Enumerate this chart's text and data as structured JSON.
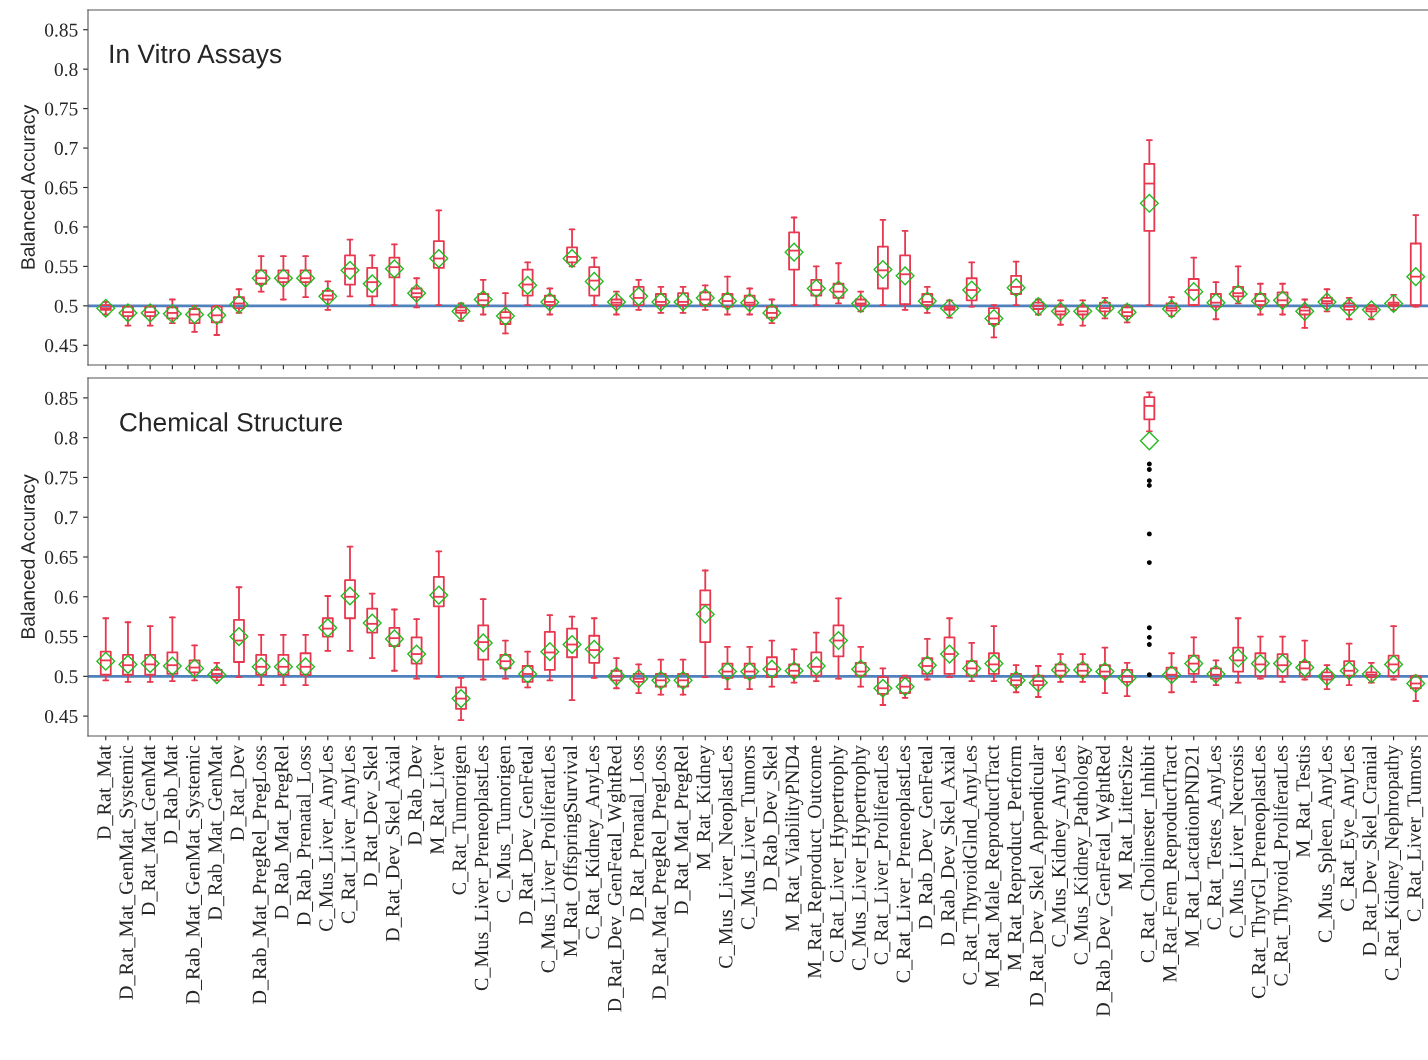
{
  "chart_data": [
    {
      "type": "box",
      "title": "In Vitro Assays",
      "ylabel": "Balanced Accuracy",
      "tick_labels": "y",
      "categories": [
        null,
        null,
        null,
        null,
        null,
        null,
        null,
        null,
        null,
        null,
        null,
        null,
        null,
        null,
        null,
        null,
        null,
        null,
        null,
        null,
        null,
        null,
        null,
        null,
        null,
        null,
        null,
        null,
        null,
        null,
        null,
        null,
        null,
        null,
        null,
        null,
        null,
        null,
        null,
        null,
        null,
        null,
        null,
        null,
        null,
        null,
        null,
        null,
        null,
        null,
        null,
        null,
        null,
        null,
        null,
        null,
        null,
        null,
        null,
        null
      ],
      "ylim": [
        0.425,
        0.875
      ],
      "yticks": [
        {
          "value": 0.45,
          "label": "0.45"
        },
        {
          "value": 0.5,
          "label": "0.5"
        },
        {
          "value": 0.55,
          "label": "0.55"
        },
        {
          "value": 0.6,
          "label": "0.6"
        },
        {
          "value": 0.65,
          "label": "0.65"
        },
        {
          "value": 0.7,
          "label": "0.7"
        },
        {
          "value": 0.75,
          "label": "0.75"
        },
        {
          "value": 0.8,
          "label": "0.8"
        },
        {
          "value": 0.85,
          "label": "0.85"
        }
      ],
      "ref_lines": [
        {
          "axis": "y",
          "value": 0.5,
          "color": "#4f81bd"
        }
      ],
      "grid": false,
      "legend": false,
      "series": [
        {
          "color": "#e8384f",
          "boxes": [
            {
              "low": 0.489,
              "q1": 0.495,
              "median": 0.497,
              "q3": 0.501,
              "high": 0.505,
              "mean": 0.497
            },
            {
              "low": 0.475,
              "q1": 0.487,
              "median": 0.492,
              "q3": 0.499,
              "high": 0.5,
              "mean": 0.491
            },
            {
              "low": 0.475,
              "q1": 0.487,
              "median": 0.492,
              "q3": 0.499,
              "high": 0.5,
              "mean": 0.491
            },
            {
              "low": 0.478,
              "q1": 0.484,
              "median": 0.491,
              "q3": 0.498,
              "high": 0.508,
              "mean": 0.49
            },
            {
              "low": 0.467,
              "q1": 0.478,
              "median": 0.489,
              "q3": 0.496,
              "high": 0.5,
              "mean": 0.489
            },
            {
              "low": 0.463,
              "q1": 0.479,
              "median": 0.488,
              "q3": 0.499,
              "high": 0.5,
              "mean": 0.488
            },
            {
              "low": 0.491,
              "q1": 0.497,
              "median": 0.503,
              "q3": 0.511,
              "high": 0.521,
              "mean": 0.502
            },
            {
              "low": 0.518,
              "q1": 0.528,
              "median": 0.535,
              "q3": 0.545,
              "high": 0.563,
              "mean": 0.535
            },
            {
              "low": 0.508,
              "q1": 0.53,
              "median": 0.535,
              "q3": 0.545,
              "high": 0.563,
              "mean": 0.535
            },
            {
              "low": 0.511,
              "q1": 0.53,
              "median": 0.535,
              "q3": 0.545,
              "high": 0.563,
              "mean": 0.535
            },
            {
              "low": 0.495,
              "q1": 0.508,
              "median": 0.513,
              "q3": 0.519,
              "high": 0.531,
              "mean": 0.512
            },
            {
              "low": 0.512,
              "q1": 0.527,
              "median": 0.547,
              "q3": 0.564,
              "high": 0.584,
              "mean": 0.545
            },
            {
              "low": 0.501,
              "q1": 0.512,
              "median": 0.53,
              "q3": 0.548,
              "high": 0.564,
              "mean": 0.528
            },
            {
              "low": 0.501,
              "q1": 0.536,
              "median": 0.549,
              "q3": 0.561,
              "high": 0.578,
              "mean": 0.547
            },
            {
              "low": 0.498,
              "q1": 0.511,
              "median": 0.516,
              "q3": 0.522,
              "high": 0.535,
              "mean": 0.516
            },
            {
              "low": 0.501,
              "q1": 0.548,
              "median": 0.56,
              "q3": 0.582,
              "high": 0.621,
              "mean": 0.56
            },
            {
              "low": 0.481,
              "q1": 0.491,
              "median": 0.494,
              "q3": 0.498,
              "high": 0.503,
              "mean": 0.493
            },
            {
              "low": 0.489,
              "q1": 0.501,
              "median": 0.507,
              "q3": 0.515,
              "high": 0.533,
              "mean": 0.508
            },
            {
              "low": 0.465,
              "q1": 0.477,
              "median": 0.485,
              "q3": 0.492,
              "high": 0.516,
              "mean": 0.487
            },
            {
              "low": 0.501,
              "q1": 0.513,
              "median": 0.527,
              "q3": 0.546,
              "high": 0.555,
              "mean": 0.526
            },
            {
              "low": 0.489,
              "q1": 0.501,
              "median": 0.505,
              "q3": 0.513,
              "high": 0.522,
              "mean": 0.505
            },
            {
              "low": 0.55,
              "q1": 0.555,
              "median": 0.562,
              "q3": 0.574,
              "high": 0.597,
              "mean": 0.56
            },
            {
              "low": 0.501,
              "q1": 0.513,
              "median": 0.532,
              "q3": 0.549,
              "high": 0.561,
              "mean": 0.531
            },
            {
              "low": 0.489,
              "q1": 0.501,
              "median": 0.504,
              "q3": 0.508,
              "high": 0.518,
              "mean": 0.505
            },
            {
              "low": 0.495,
              "q1": 0.501,
              "median": 0.51,
              "q3": 0.524,
              "high": 0.533,
              "mean": 0.512
            },
            {
              "low": 0.491,
              "q1": 0.501,
              "median": 0.505,
              "q3": 0.515,
              "high": 0.524,
              "mean": 0.505
            },
            {
              "low": 0.491,
              "q1": 0.501,
              "median": 0.505,
              "q3": 0.516,
              "high": 0.524,
              "mean": 0.505
            },
            {
              "low": 0.495,
              "q1": 0.501,
              "median": 0.508,
              "q3": 0.517,
              "high": 0.526,
              "mean": 0.51
            },
            {
              "low": 0.489,
              "q1": 0.499,
              "median": 0.506,
              "q3": 0.515,
              "high": 0.537,
              "mean": 0.506
            },
            {
              "low": 0.489,
              "q1": 0.501,
              "median": 0.504,
              "q3": 0.513,
              "high": 0.522,
              "mean": 0.504
            },
            {
              "low": 0.478,
              "q1": 0.485,
              "median": 0.491,
              "q3": 0.499,
              "high": 0.508,
              "mean": 0.491
            },
            {
              "low": 0.501,
              "q1": 0.546,
              "median": 0.57,
              "q3": 0.593,
              "high": 0.612,
              "mean": 0.568
            },
            {
              "low": 0.501,
              "q1": 0.513,
              "median": 0.52,
              "q3": 0.533,
              "high": 0.55,
              "mean": 0.522
            },
            {
              "low": 0.503,
              "q1": 0.51,
              "median": 0.518,
              "q3": 0.528,
              "high": 0.554,
              "mean": 0.52
            },
            {
              "low": 0.493,
              "q1": 0.501,
              "median": 0.503,
              "q3": 0.508,
              "high": 0.518,
              "mean": 0.503
            },
            {
              "low": 0.501,
              "q1": 0.522,
              "median": 0.545,
              "q3": 0.575,
              "high": 0.609,
              "mean": 0.546
            },
            {
              "low": 0.495,
              "q1": 0.502,
              "median": 0.54,
              "q3": 0.564,
              "high": 0.595,
              "mean": 0.538
            },
            {
              "low": 0.491,
              "q1": 0.501,
              "median": 0.505,
              "q3": 0.515,
              "high": 0.524,
              "mean": 0.506
            },
            {
              "low": 0.485,
              "q1": 0.495,
              "median": 0.497,
              "q3": 0.499,
              "high": 0.507,
              "mean": 0.497
            },
            {
              "low": 0.499,
              "q1": 0.507,
              "median": 0.52,
              "q3": 0.535,
              "high": 0.555,
              "mean": 0.52
            },
            {
              "low": 0.46,
              "q1": 0.477,
              "median": 0.484,
              "q3": 0.497,
              "high": 0.501,
              "mean": 0.484
            },
            {
              "low": 0.501,
              "q1": 0.515,
              "median": 0.524,
              "q3": 0.538,
              "high": 0.556,
              "mean": 0.523
            },
            {
              "low": 0.489,
              "q1": 0.496,
              "median": 0.5,
              "q3": 0.504,
              "high": 0.508,
              "mean": 0.499
            },
            {
              "low": 0.476,
              "q1": 0.489,
              "median": 0.493,
              "q3": 0.499,
              "high": 0.507,
              "mean": 0.493
            },
            {
              "low": 0.475,
              "q1": 0.489,
              "median": 0.493,
              "q3": 0.499,
              "high": 0.507,
              "mean": 0.493
            },
            {
              "low": 0.484,
              "q1": 0.493,
              "median": 0.497,
              "q3": 0.504,
              "high": 0.51,
              "mean": 0.497
            },
            {
              "low": 0.479,
              "q1": 0.487,
              "median": 0.492,
              "q3": 0.498,
              "high": 0.501,
              "mean": 0.492
            },
            {
              "low": 0.501,
              "q1": 0.595,
              "median": 0.655,
              "q3": 0.68,
              "high": 0.71,
              "mean": 0.63
            },
            {
              "low": 0.487,
              "q1": 0.494,
              "median": 0.497,
              "q3": 0.503,
              "high": 0.511,
              "mean": 0.496
            },
            {
              "low": 0.501,
              "q1": 0.501,
              "median": 0.52,
              "q3": 0.534,
              "high": 0.561,
              "mean": 0.518
            },
            {
              "low": 0.483,
              "q1": 0.499,
              "median": 0.504,
              "q3": 0.515,
              "high": 0.53,
              "mean": 0.504
            },
            {
              "low": 0.503,
              "q1": 0.512,
              "median": 0.516,
              "q3": 0.524,
              "high": 0.55,
              "mean": 0.515
            },
            {
              "low": 0.489,
              "q1": 0.501,
              "median": 0.506,
              "q3": 0.515,
              "high": 0.528,
              "mean": 0.506
            },
            {
              "low": 0.489,
              "q1": 0.501,
              "median": 0.507,
              "q3": 0.517,
              "high": 0.528,
              "mean": 0.507
            },
            {
              "low": 0.472,
              "q1": 0.489,
              "median": 0.494,
              "q3": 0.498,
              "high": 0.508,
              "mean": 0.493
            },
            {
              "low": 0.493,
              "q1": 0.503,
              "median": 0.506,
              "q3": 0.51,
              "high": 0.521,
              "mean": 0.505
            },
            {
              "low": 0.483,
              "q1": 0.495,
              "median": 0.499,
              "q3": 0.503,
              "high": 0.51,
              "mean": 0.498
            },
            {
              "low": 0.483,
              "q1": 0.493,
              "median": 0.496,
              "q3": 0.499,
              "high": 0.501,
              "mean": 0.495
            },
            {
              "low": 0.495,
              "q1": 0.5,
              "median": 0.502,
              "q3": 0.504,
              "high": 0.514,
              "mean": 0.503
            },
            {
              "low": 0.499,
              "q1": 0.501,
              "median": 0.537,
              "q3": 0.579,
              "high": 0.615,
              "mean": 0.537
            }
          ]
        }
      ]
    },
    {
      "type": "box",
      "title": "Chemical Structure",
      "ylabel": "Balanced Accuracy",
      "categories": [
        "D_Rat_Mat",
        "D_Rat_Mat_GenMat_Systemic",
        "D_Rat_Mat_GenMat",
        "D_Rab_Mat",
        "D_Rab_Mat_GenMat_Systemic",
        "D_Rab_Mat_GenMat",
        "D_Rat_Dev",
        "D_Rab_Mat_PregRel_PregLoss",
        "D_Rab_Mat_PregRel",
        "D_Rab_Prenatal_Loss",
        "C_Mus_Liver_AnyLes",
        "C_Rat_Liver_AnyLes",
        "D_Rat_Dev_Skel",
        "D_Rat_Dev_Skel_Axial",
        "D_Rab_Dev",
        "M_Rat_Liver",
        "C_Rat_Tumorigen",
        "C_Mus_Liver_PreneoplastLes",
        "C_Mus_Tumorigen",
        "D_Rat_Dev_GenFetal",
        "C_Mus_Liver_ProliferatLes",
        "M_Rat_OffspringSurvival",
        "C_Rat_Kidney_AnyLes",
        "D_Rat_Dev_GenFetal_WghtRed",
        "D_Rat_Prenatal_Loss",
        "D_Rat_Mat_PregRel_PregLoss",
        "D_Rat_Mat_PregRel",
        "M_Rat_Kidney",
        "C_Mus_Liver_NeoplastLes",
        "C_Mus_Liver_Tumors",
        "D_Rab_Dev_Skel",
        "M_Rat_ViabilityPND4",
        "M_Rat_Reproduct_Outcome",
        "C_Rat_Liver_Hypertrophy",
        "C_Mus_Liver_Hypertrophy",
        "C_Rat_Liver_ProliferatLes",
        "C_Rat_Liver_PreneoplastLes",
        "D_Rab_Dev_GenFetal",
        "D_Rab_Dev_Skel_Axial",
        "C_Rat_ThyroidGlnd_AnyLes",
        "M_Rat_Male_ReproductTract",
        "M_Rat_Reproduct_Perform",
        "D_Rat_Dev_Skel_Appendicular",
        "C_Mus_Kidney_AnyLes",
        "C_Mus_Kidney_Pathology",
        "D_Rab_Dev_GenFetal_WghtRed",
        "M_Rat_LitterSize",
        "C_Rat_Cholinester_Inhibit",
        "M_Rat_Fem_ReproductTract",
        "M_Rat_LactationPND21",
        "C_Rat_Testes_AnyLes",
        "C_Mus_Liver_Necrosis",
        "C_Rat_ThyrGl_PreneoplastLes",
        "C_Rat_Thyroid_ProliferatLes",
        "M_Rat_Testis",
        "C_Mus_Spleen_AnyLes",
        "C_Rat_Eye_AnyLes",
        "D_Rat_Dev_Skel_Cranial",
        "C_Rat_Kidney_Nephropathy",
        "C_Rat_Liver_Tumors"
      ],
      "ylim": [
        0.425,
        0.875
      ],
      "yticks": [
        {
          "value": 0.45,
          "label": "0.45"
        },
        {
          "value": 0.5,
          "label": "0.5"
        },
        {
          "value": 0.55,
          "label": "0.55"
        },
        {
          "value": 0.6,
          "label": "0.6"
        },
        {
          "value": 0.65,
          "label": "0.65"
        },
        {
          "value": 0.7,
          "label": "0.7"
        },
        {
          "value": 0.75,
          "label": "0.75"
        },
        {
          "value": 0.8,
          "label": "0.8"
        },
        {
          "value": 0.85,
          "label": "0.85"
        }
      ],
      "ref_lines": [
        {
          "axis": "y",
          "value": 0.5,
          "color": "#4f81bd"
        }
      ],
      "grid": false,
      "legend": false,
      "series": [
        {
          "color": "#e8384f",
          "boxes": [
            {
              "low": 0.495,
              "q1": 0.502,
              "median": 0.52,
              "q3": 0.531,
              "high": 0.573,
              "mean": 0.519
            },
            {
              "low": 0.493,
              "q1": 0.502,
              "median": 0.514,
              "q3": 0.527,
              "high": 0.568,
              "mean": 0.515
            },
            {
              "low": 0.493,
              "q1": 0.502,
              "median": 0.515,
              "q3": 0.527,
              "high": 0.563,
              "mean": 0.516
            },
            {
              "low": 0.494,
              "q1": 0.503,
              "median": 0.514,
              "q3": 0.53,
              "high": 0.574,
              "mean": 0.513
            },
            {
              "low": 0.495,
              "q1": 0.505,
              "median": 0.511,
              "q3": 0.52,
              "high": 0.539,
              "mean": 0.51
            },
            {
              "low": 0.495,
              "q1": 0.499,
              "median": 0.503,
              "q3": 0.508,
              "high": 0.517,
              "mean": 0.502
            },
            {
              "low": 0.499,
              "q1": 0.518,
              "median": 0.545,
              "q3": 0.571,
              "high": 0.612,
              "mean": 0.55
            },
            {
              "low": 0.489,
              "q1": 0.502,
              "median": 0.512,
              "q3": 0.527,
              "high": 0.552,
              "mean": 0.512
            },
            {
              "low": 0.489,
              "q1": 0.502,
              "median": 0.512,
              "q3": 0.527,
              "high": 0.552,
              "mean": 0.512
            },
            {
              "low": 0.489,
              "q1": 0.502,
              "median": 0.512,
              "q3": 0.529,
              "high": 0.552,
              "mean": 0.512
            },
            {
              "low": 0.532,
              "q1": 0.55,
              "median": 0.56,
              "q3": 0.573,
              "high": 0.601,
              "mean": 0.561
            },
            {
              "low": 0.532,
              "q1": 0.573,
              "median": 0.6,
              "q3": 0.621,
              "high": 0.663,
              "mean": 0.601
            },
            {
              "low": 0.523,
              "q1": 0.555,
              "median": 0.566,
              "q3": 0.585,
              "high": 0.604,
              "mean": 0.567
            },
            {
              "low": 0.507,
              "q1": 0.538,
              "median": 0.548,
              "q3": 0.561,
              "high": 0.584,
              "mean": 0.547
            },
            {
              "low": 0.497,
              "q1": 0.516,
              "median": 0.528,
              "q3": 0.549,
              "high": 0.572,
              "mean": 0.528
            },
            {
              "low": 0.499,
              "q1": 0.588,
              "median": 0.6,
              "q3": 0.625,
              "high": 0.657,
              "mean": 0.602
            },
            {
              "low": 0.445,
              "q1": 0.459,
              "median": 0.472,
              "q3": 0.486,
              "high": 0.498,
              "mean": 0.472
            },
            {
              "low": 0.496,
              "q1": 0.521,
              "median": 0.543,
              "q3": 0.564,
              "high": 0.597,
              "mean": 0.542
            },
            {
              "low": 0.497,
              "q1": 0.51,
              "median": 0.519,
              "q3": 0.527,
              "high": 0.545,
              "mean": 0.518
            },
            {
              "low": 0.486,
              "q1": 0.493,
              "median": 0.503,
              "q3": 0.513,
              "high": 0.531,
              "mean": 0.503
            },
            {
              "low": 0.495,
              "q1": 0.508,
              "median": 0.53,
              "q3": 0.556,
              "high": 0.577,
              "mean": 0.531
            },
            {
              "low": 0.47,
              "q1": 0.524,
              "median": 0.54,
              "q3": 0.56,
              "high": 0.575,
              "mean": 0.54
            },
            {
              "low": 0.498,
              "q1": 0.517,
              "median": 0.533,
              "q3": 0.551,
              "high": 0.573,
              "mean": 0.534
            },
            {
              "low": 0.485,
              "q1": 0.495,
              "median": 0.5,
              "q3": 0.507,
              "high": 0.523,
              "mean": 0.5
            },
            {
              "low": 0.479,
              "q1": 0.493,
              "median": 0.497,
              "q3": 0.503,
              "high": 0.515,
              "mean": 0.497
            },
            {
              "low": 0.477,
              "q1": 0.487,
              "median": 0.495,
              "q3": 0.503,
              "high": 0.521,
              "mean": 0.495
            },
            {
              "low": 0.477,
              "q1": 0.487,
              "median": 0.495,
              "q3": 0.503,
              "high": 0.521,
              "mean": 0.495
            },
            {
              "low": 0.499,
              "q1": 0.543,
              "median": 0.59,
              "q3": 0.608,
              "high": 0.633,
              "mean": 0.578
            },
            {
              "low": 0.484,
              "q1": 0.498,
              "median": 0.506,
              "q3": 0.516,
              "high": 0.537,
              "mean": 0.506
            },
            {
              "low": 0.484,
              "q1": 0.498,
              "median": 0.506,
              "q3": 0.516,
              "high": 0.537,
              "mean": 0.506
            },
            {
              "low": 0.487,
              "q1": 0.499,
              "median": 0.509,
              "q3": 0.524,
              "high": 0.545,
              "mean": 0.509
            },
            {
              "low": 0.492,
              "q1": 0.501,
              "median": 0.507,
              "q3": 0.515,
              "high": 0.534,
              "mean": 0.507
            },
            {
              "low": 0.494,
              "q1": 0.501,
              "median": 0.512,
              "q3": 0.53,
              "high": 0.555,
              "mean": 0.513
            },
            {
              "low": 0.497,
              "q1": 0.525,
              "median": 0.545,
              "q3": 0.564,
              "high": 0.598,
              "mean": 0.545
            },
            {
              "low": 0.487,
              "q1": 0.501,
              "median": 0.506,
              "q3": 0.517,
              "high": 0.537,
              "mean": 0.509
            },
            {
              "low": 0.464,
              "q1": 0.478,
              "median": 0.485,
              "q3": 0.499,
              "high": 0.51,
              "mean": 0.485
            },
            {
              "low": 0.473,
              "q1": 0.479,
              "median": 0.487,
              "q3": 0.498,
              "high": 0.501,
              "mean": 0.487
            },
            {
              "low": 0.496,
              "q1": 0.503,
              "median": 0.513,
              "q3": 0.523,
              "high": 0.547,
              "mean": 0.514
            },
            {
              "low": 0.499,
              "q1": 0.503,
              "median": 0.528,
              "q3": 0.549,
              "high": 0.573,
              "mean": 0.528
            },
            {
              "low": 0.494,
              "q1": 0.501,
              "median": 0.51,
              "q3": 0.519,
              "high": 0.542,
              "mean": 0.51
            },
            {
              "low": 0.494,
              "q1": 0.503,
              "median": 0.515,
              "q3": 0.529,
              "high": 0.563,
              "mean": 0.516
            },
            {
              "low": 0.48,
              "q1": 0.489,
              "median": 0.495,
              "q3": 0.503,
              "high": 0.514,
              "mean": 0.495
            },
            {
              "low": 0.474,
              "q1": 0.489,
              "median": 0.494,
              "q3": 0.501,
              "high": 0.513,
              "mean": 0.492
            },
            {
              "low": 0.493,
              "q1": 0.501,
              "median": 0.507,
              "q3": 0.515,
              "high": 0.528,
              "mean": 0.508
            },
            {
              "low": 0.493,
              "q1": 0.501,
              "median": 0.507,
              "q3": 0.515,
              "high": 0.528,
              "mean": 0.508
            },
            {
              "low": 0.479,
              "q1": 0.5,
              "median": 0.506,
              "q3": 0.514,
              "high": 0.536,
              "mean": 0.506
            },
            {
              "low": 0.475,
              "q1": 0.493,
              "median": 0.5,
              "q3": 0.508,
              "high": 0.517,
              "mean": 0.498
            },
            {
              "low": 0.808,
              "q1": 0.823,
              "median": 0.84,
              "q3": 0.851,
              "high": 0.857,
              "mean": 0.796,
              "outliers": [
                0.767,
                0.76,
                0.746,
                0.74,
                0.679,
                0.643,
                0.561,
                0.549,
                0.54,
                0.502
              ]
            },
            {
              "low": 0.48,
              "q1": 0.497,
              "median": 0.502,
              "q3": 0.511,
              "high": 0.529,
              "mean": 0.502
            },
            {
              "low": 0.493,
              "q1": 0.503,
              "median": 0.516,
              "q3": 0.526,
              "high": 0.549,
              "mean": 0.516
            },
            {
              "low": 0.489,
              "q1": 0.497,
              "median": 0.502,
              "q3": 0.51,
              "high": 0.52,
              "mean": 0.503
            },
            {
              "low": 0.492,
              "q1": 0.506,
              "median": 0.52,
              "q3": 0.536,
              "high": 0.573,
              "mean": 0.523
            },
            {
              "low": 0.497,
              "q1": 0.5,
              "median": 0.515,
              "q3": 0.529,
              "high": 0.55,
              "mean": 0.516
            },
            {
              "low": 0.493,
              "q1": 0.5,
              "median": 0.514,
              "q3": 0.528,
              "high": 0.55,
              "mean": 0.516
            },
            {
              "low": 0.496,
              "q1": 0.5,
              "median": 0.51,
              "q3": 0.518,
              "high": 0.545,
              "mean": 0.511
            },
            {
              "low": 0.484,
              "q1": 0.496,
              "median": 0.5,
              "q3": 0.505,
              "high": 0.514,
              "mean": 0.5
            },
            {
              "low": 0.489,
              "q1": 0.501,
              "median": 0.507,
              "q3": 0.519,
              "high": 0.541,
              "mean": 0.507
            },
            {
              "low": 0.492,
              "q1": 0.499,
              "median": 0.502,
              "q3": 0.505,
              "high": 0.517,
              "mean": 0.503
            },
            {
              "low": 0.496,
              "q1": 0.5,
              "median": 0.515,
              "q3": 0.526,
              "high": 0.563,
              "mean": 0.515
            },
            {
              "low": 0.469,
              "q1": 0.485,
              "median": 0.491,
              "q3": 0.5,
              "high": 0.501,
              "mean": 0.491
            }
          ]
        }
      ]
    }
  ]
}
